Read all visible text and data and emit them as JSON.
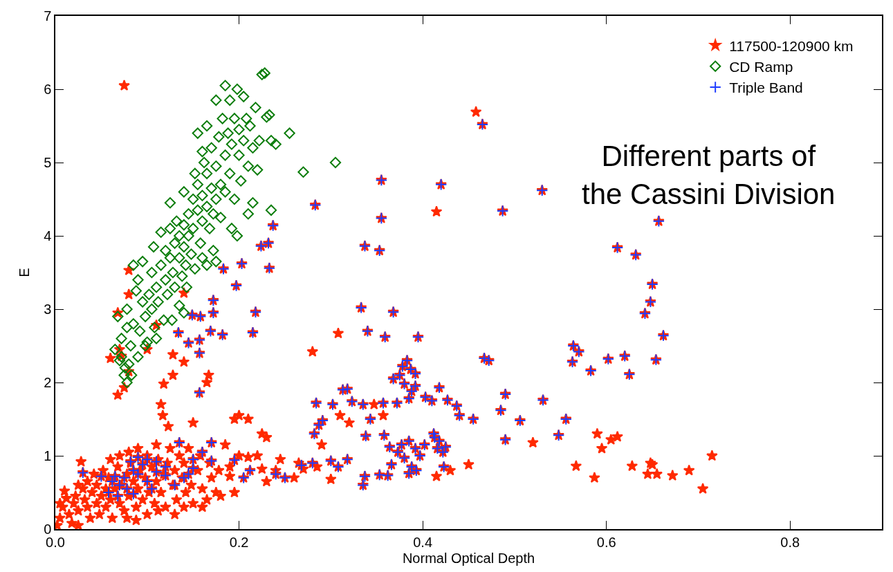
{
  "chart_data": {
    "type": "scatter",
    "xlabel": "Normal Optical Depth",
    "ylabel": "E",
    "xlim": [
      0,
      0.9
    ],
    "ylim": [
      0,
      7
    ],
    "xticks": [
      {
        "value": 0,
        "label": "0.0"
      },
      0.2,
      0.4,
      0.6,
      0.8
    ],
    "yticks": [
      0,
      1,
      2,
      3,
      4,
      5,
      6,
      7
    ],
    "legend": "top right",
    "annotations": [
      "Different parts of\nthe Cassini Division"
    ],
    "series": [
      {
        "name": "117500-120900 km",
        "color": "#ff2a00",
        "marker": "star",
        "x": [
          0.465,
          0.355,
          0.42,
          0.53,
          0.283,
          0.355,
          0.487,
          0.237,
          0.232,
          0.224,
          0.337,
          0.353,
          0.203,
          0.233,
          0.183,
          0.197,
          0.612,
          0.657,
          0.632,
          0.65,
          0.648,
          0.642,
          0.662,
          0.172,
          0.149,
          0.158,
          0.172,
          0.218,
          0.134,
          0.169,
          0.182,
          0.215,
          0.145,
          0.157,
          0.157,
          0.157,
          0.333,
          0.368,
          0.34,
          0.359,
          0.395,
          0.564,
          0.57,
          0.563,
          0.583,
          0.602,
          0.62,
          0.625,
          0.654,
          0.467,
          0.472,
          0.383,
          0.378,
          0.387,
          0.375,
          0.392,
          0.368,
          0.38,
          0.392,
          0.388,
          0.403,
          0.372,
          0.385,
          0.41,
          0.418,
          0.427,
          0.437,
          0.44,
          0.455,
          0.343,
          0.357,
          0.335,
          0.284,
          0.302,
          0.313,
          0.318,
          0.323,
          0.291,
          0.287,
          0.282,
          0.485,
          0.49,
          0.506,
          0.531,
          0.556,
          0.548,
          0.49,
          0.338,
          0.358,
          0.364,
          0.377,
          0.373,
          0.38,
          0.385,
          0.392,
          0.388,
          0.393,
          0.385,
          0.397,
          0.402,
          0.413,
          0.416,
          0.418,
          0.422,
          0.425,
          0.423,
          0.412,
          0.366,
          0.353,
          0.362,
          0.337,
          0.335,
          0.308,
          0.3,
          0.318,
          0.28,
          0.268,
          0.25,
          0.24,
          0.212,
          0.205,
          0.195,
          0.17,
          0.15,
          0.15,
          0.16,
          0.17,
          0.145,
          0.12,
          0.11,
          0.1,
          0.09,
          0.082,
          0.085,
          0.09,
          0.095,
          0.075,
          0.07,
          0.065,
          0.062,
          0.058,
          0.068,
          0.078,
          0.085,
          0.1,
          0.105,
          0.05,
          0.03,
          0.13,
          0.14,
          0.135,
          0.12,
          0.11,
          0.075,
          0.458,
          0.415,
          0.08,
          0.08,
          0.14,
          0.068,
          0.11,
          0.07,
          0.06,
          0.072,
          0.08,
          0.1,
          0.128,
          0.14,
          0.128,
          0.167,
          0.165,
          0.118,
          0.068,
          0.075,
          0.115,
          0.117,
          0.123,
          0.15,
          0.195,
          0.2,
          0.21,
          0.225,
          0.23,
          0.28,
          0.308,
          0.31,
          0.32,
          0.347,
          0.357,
          0.29,
          0.3,
          0.285,
          0.26,
          0.23,
          0.225,
          0.415,
          0.43,
          0.45,
          0.52,
          0.567,
          0.587,
          0.59,
          0.595,
          0.605,
          0.612,
          0.628,
          0.645,
          0.65,
          0.655,
          0.648,
          0.672,
          0.69,
          0.705,
          0.715,
          0.195,
          0.19,
          0.18,
          0.2,
          0.002,
          0.005,
          0.008,
          0.01,
          0.012,
          0.015,
          0.018,
          0.02,
          0.022,
          0.025,
          0.025,
          0.028,
          0.03,
          0.032,
          0.035,
          0.035,
          0.038,
          0.04,
          0.042,
          0.045,
          0.045,
          0.048,
          0.05,
          0.052,
          0.055,
          0.055,
          0.058,
          0.06,
          0.06,
          0.062,
          0.065,
          0.068,
          0.07,
          0.07,
          0.072,
          0.075,
          0.078,
          0.08,
          0.08,
          0.082,
          0.085,
          0.088,
          0.09,
          0.09,
          0.092,
          0.095,
          0.098,
          0.1,
          0.1,
          0.102,
          0.105,
          0.108,
          0.11,
          0.11,
          0.112,
          0.115,
          0.118,
          0.12,
          0.122,
          0.125,
          0.128,
          0.13,
          0.132,
          0.135,
          0.138,
          0.14,
          0.142,
          0.145,
          0.148,
          0.15,
          0.155,
          0.158,
          0.16,
          0.165,
          0.168,
          0.17,
          0.175,
          0.178,
          0.185,
          0.19,
          0.078,
          0.088,
          0.112,
          0.13,
          0.025,
          0.005,
          0.14,
          0.16,
          0.21,
          0.22,
          0.24,
          0.245,
          0.265,
          0.27
        ],
        "values": [
          5.52,
          4.76,
          4.7,
          4.62,
          4.42,
          4.24,
          4.34,
          4.14,
          3.9,
          3.86,
          3.86,
          3.8,
          3.62,
          3.56,
          3.55,
          3.32,
          3.84,
          4.2,
          3.74,
          3.34,
          3.1,
          2.94,
          2.64,
          3.12,
          2.92,
          2.9,
          2.95,
          2.96,
          2.68,
          2.7,
          2.65,
          2.68,
          2.54,
          2.58,
          2.4,
          1.86,
          3.02,
          2.96,
          2.7,
          2.62,
          2.62,
          2.5,
          2.42,
          2.28,
          2.16,
          2.32,
          2.36,
          2.11,
          2.31,
          2.33,
          2.3,
          2.3,
          2.22,
          2.18,
          2.1,
          2.12,
          2.05,
          1.98,
          1.95,
          1.88,
          1.8,
          1.72,
          1.78,
          1.75,
          1.93,
          1.76,
          1.68,
          1.55,
          1.5,
          1.5,
          1.72,
          1.7,
          1.72,
          1.7,
          1.9,
          1.91,
          1.74,
          1.48,
          1.42,
          1.3,
          1.62,
          1.84,
          1.48,
          1.76,
          1.5,
          1.28,
          1.22,
          1.27,
          1.28,
          1.12,
          1.15,
          1.05,
          0.97,
          1.2,
          1.1,
          0.85,
          0.8,
          0.76,
          1.0,
          1.15,
          1.25,
          1.1,
          1.2,
          1.05,
          1.12,
          0.85,
          1.3,
          0.88,
          0.74,
          0.73,
          0.72,
          0.6,
          0.85,
          0.93,
          0.95,
          0.9,
          0.87,
          0.7,
          0.75,
          0.8,
          0.7,
          0.94,
          0.93,
          0.95,
          0.83,
          1.05,
          1.18,
          0.75,
          0.85,
          0.92,
          0.95,
          0.98,
          0.92,
          0.8,
          0.75,
          0.88,
          0.7,
          0.6,
          0.72,
          0.65,
          0.5,
          0.45,
          0.55,
          0.48,
          0.65,
          0.55,
          0.72,
          0.77,
          0.6,
          0.7,
          1.18,
          0.73,
          0.78,
          6.05,
          5.69,
          4.33,
          3.53,
          3.2,
          3.22,
          2.95,
          2.78,
          2.45,
          2.33,
          2.36,
          2.15,
          2.45,
          2.38,
          2.28,
          2.1,
          2.1,
          2.0,
          1.98,
          1.83,
          1.93,
          1.7,
          1.55,
          1.4,
          1.45,
          1.5,
          1.55,
          1.5,
          1.3,
          1.25,
          2.42,
          2.67,
          1.55,
          1.45,
          1.7,
          1.55,
          1.15,
          0.68,
          0.85,
          0.7,
          0.65,
          0.82,
          0.72,
          0.8,
          0.88,
          1.18,
          0.86,
          0.7,
          1.3,
          1.1,
          1.22,
          1.26,
          0.86,
          0.75,
          0.88,
          0.75,
          0.9,
          0.73,
          0.8,
          0.55,
          1.0,
          0.5,
          0.72,
          0.45,
          1.0,
          0.05,
          0.15,
          0.3,
          0.52,
          0.42,
          0.2,
          0.08,
          0.35,
          0.45,
          0.6,
          0.25,
          0.92,
          0.55,
          0.4,
          0.3,
          0.65,
          0.15,
          0.5,
          0.75,
          0.35,
          0.6,
          0.2,
          0.45,
          0.8,
          0.55,
          0.3,
          0.7,
          0.4,
          0.95,
          0.15,
          0.55,
          0.85,
          0.35,
          1.0,
          0.6,
          0.25,
          0.75,
          0.45,
          1.05,
          0.9,
          0.65,
          0.3,
          0.55,
          1.1,
          0.8,
          0.4,
          0.7,
          1.0,
          0.2,
          0.5,
          0.85,
          0.35,
          0.65,
          1.15,
          0.95,
          0.5,
          0.75,
          0.3,
          0.9,
          1.1,
          0.6,
          0.8,
          0.4,
          1.0,
          0.7,
          0.9,
          0.5,
          1.1,
          0.6,
          0.35,
          0.8,
          1.0,
          0.55,
          0.4,
          0.9,
          0.7,
          0.5,
          0.8,
          1.15,
          0.85,
          0.15,
          0.12,
          0.25,
          0.2,
          0.05,
          0.35,
          0.3,
          0.3,
          0.98,
          1.0,
          0.8,
          0.95,
          0.9,
          0.82
        ]
      },
      {
        "name": "CD Ramp",
        "color": "#0a7d0a",
        "marker": "diamond",
        "x": [
          0.065,
          0.07,
          0.075,
          0.078,
          0.072,
          0.068,
          0.08,
          0.082,
          0.085,
          0.078,
          0.09,
          0.092,
          0.095,
          0.09,
          0.085,
          0.088,
          0.098,
          0.1,
          0.102,
          0.105,
          0.105,
          0.108,
          0.11,
          0.112,
          0.115,
          0.118,
          0.12,
          0.12,
          0.122,
          0.125,
          0.125,
          0.128,
          0.13,
          0.13,
          0.132,
          0.135,
          0.135,
          0.138,
          0.14,
          0.14,
          0.142,
          0.145,
          0.145,
          0.148,
          0.15,
          0.15,
          0.152,
          0.155,
          0.155,
          0.158,
          0.16,
          0.16,
          0.162,
          0.165,
          0.165,
          0.168,
          0.17,
          0.17,
          0.172,
          0.175,
          0.175,
          0.178,
          0.18,
          0.18,
          0.182,
          0.185,
          0.185,
          0.188,
          0.19,
          0.19,
          0.192,
          0.195,
          0.195,
          0.198,
          0.2,
          0.2,
          0.202,
          0.205,
          0.205,
          0.208,
          0.21,
          0.212,
          0.215,
          0.218,
          0.22,
          0.222,
          0.225,
          0.228,
          0.23,
          0.233,
          0.235,
          0.24,
          0.235,
          0.255,
          0.27,
          0.305,
          0.165,
          0.16,
          0.155,
          0.175,
          0.185,
          0.172,
          0.192,
          0.198,
          0.21,
          0.215,
          0.175,
          0.143,
          0.135,
          0.127,
          0.11,
          0.098,
          0.078,
          0.095,
          0.107,
          0.115,
          0.125,
          0.14,
          0.152,
          0.16,
          0.165,
          0.14,
          0.072,
          0.076,
          0.083
        ],
        "values": [
          2.45,
          2.3,
          2.1,
          2.0,
          2.6,
          2.9,
          2.25,
          2.5,
          2.8,
          3.0,
          2.35,
          2.7,
          3.1,
          3.4,
          3.6,
          3.25,
          2.9,
          2.55,
          3.2,
          3.0,
          3.5,
          2.75,
          3.3,
          3.1,
          3.6,
          2.85,
          3.4,
          3.8,
          3.2,
          3.7,
          4.1,
          3.5,
          3.9,
          3.3,
          4.2,
          3.7,
          4.0,
          3.45,
          4.15,
          3.85,
          3.6,
          4.3,
          4.0,
          3.75,
          4.5,
          4.1,
          3.55,
          4.35,
          4.7,
          3.9,
          4.55,
          4.2,
          5.0,
          4.4,
          4.85,
          4.1,
          4.65,
          5.2,
          3.8,
          4.5,
          4.95,
          5.35,
          4.7,
          4.25,
          5.6,
          5.1,
          4.6,
          5.4,
          4.85,
          5.85,
          5.25,
          4.5,
          5.6,
          6.0,
          5.1,
          5.45,
          4.75,
          5.9,
          5.3,
          5.6,
          4.95,
          5.5,
          5.2,
          5.75,
          4.9,
          5.3,
          6.2,
          6.22,
          5.62,
          5.65,
          5.3,
          5.25,
          4.35,
          5.4,
          4.87,
          5.0,
          5.5,
          5.15,
          5.4,
          5.85,
          6.05,
          4.3,
          4.1,
          4.0,
          4.3,
          4.45,
          3.65,
          3.3,
          3.05,
          2.85,
          2.6,
          2.5,
          2.75,
          3.65,
          3.85,
          4.05,
          4.45,
          4.6,
          4.85,
          3.7,
          3.6,
          2.95,
          2.35,
          2.2,
          2.1
        ]
      },
      {
        "name": "Triple Band",
        "color": "#1e3cff",
        "marker": "cross",
        "x": [
          0.465,
          0.355,
          0.42,
          0.53,
          0.283,
          0.355,
          0.487,
          0.237,
          0.232,
          0.224,
          0.337,
          0.353,
          0.203,
          0.233,
          0.183,
          0.197,
          0.612,
          0.657,
          0.632,
          0.65,
          0.648,
          0.642,
          0.662,
          0.172,
          0.149,
          0.158,
          0.172,
          0.218,
          0.134,
          0.169,
          0.182,
          0.215,
          0.145,
          0.157,
          0.157,
          0.157,
          0.333,
          0.368,
          0.34,
          0.359,
          0.395,
          0.564,
          0.57,
          0.563,
          0.583,
          0.602,
          0.62,
          0.625,
          0.654,
          0.467,
          0.472,
          0.383,
          0.378,
          0.387,
          0.375,
          0.392,
          0.368,
          0.38,
          0.392,
          0.388,
          0.403,
          0.372,
          0.385,
          0.41,
          0.418,
          0.427,
          0.437,
          0.44,
          0.455,
          0.343,
          0.357,
          0.335,
          0.284,
          0.302,
          0.313,
          0.318,
          0.323,
          0.291,
          0.287,
          0.282,
          0.485,
          0.49,
          0.506,
          0.531,
          0.556,
          0.548,
          0.49,
          0.338,
          0.358,
          0.364,
          0.377,
          0.373,
          0.38,
          0.385,
          0.392,
          0.388,
          0.393,
          0.385,
          0.397,
          0.402,
          0.413,
          0.416,
          0.418,
          0.422,
          0.425,
          0.423,
          0.412,
          0.366,
          0.353,
          0.362,
          0.337,
          0.335,
          0.308,
          0.3,
          0.318,
          0.28,
          0.268,
          0.25,
          0.24,
          0.212,
          0.205,
          0.195,
          0.17,
          0.15,
          0.15,
          0.16,
          0.17,
          0.145,
          0.12,
          0.11,
          0.1,
          0.09,
          0.082,
          0.085,
          0.09,
          0.095,
          0.075,
          0.07,
          0.065,
          0.062,
          0.058,
          0.068,
          0.078,
          0.085,
          0.1,
          0.105,
          0.05,
          0.03,
          0.13,
          0.14,
          0.135,
          0.12,
          0.11
        ],
        "values": [
          5.52,
          4.76,
          4.7,
          4.62,
          4.42,
          4.24,
          4.34,
          4.14,
          3.9,
          3.86,
          3.86,
          3.8,
          3.62,
          3.56,
          3.55,
          3.32,
          3.84,
          4.2,
          3.74,
          3.34,
          3.1,
          2.94,
          2.64,
          3.12,
          2.92,
          2.9,
          2.95,
          2.96,
          2.68,
          2.7,
          2.65,
          2.68,
          2.54,
          2.58,
          2.4,
          1.86,
          3.02,
          2.96,
          2.7,
          2.62,
          2.62,
          2.5,
          2.42,
          2.28,
          2.16,
          2.32,
          2.36,
          2.11,
          2.31,
          2.33,
          2.3,
          2.3,
          2.22,
          2.18,
          2.1,
          2.12,
          2.05,
          1.98,
          1.95,
          1.88,
          1.8,
          1.72,
          1.78,
          1.75,
          1.93,
          1.76,
          1.68,
          1.55,
          1.5,
          1.5,
          1.72,
          1.7,
          1.72,
          1.7,
          1.9,
          1.91,
          1.74,
          1.48,
          1.42,
          1.3,
          1.62,
          1.84,
          1.48,
          1.76,
          1.5,
          1.28,
          1.22,
          1.27,
          1.28,
          1.12,
          1.15,
          1.05,
          0.97,
          1.2,
          1.1,
          0.85,
          0.8,
          0.76,
          1.0,
          1.15,
          1.25,
          1.1,
          1.2,
          1.05,
          1.12,
          0.85,
          1.3,
          0.88,
          0.74,
          0.73,
          0.72,
          0.6,
          0.85,
          0.93,
          0.95,
          0.9,
          0.87,
          0.7,
          0.75,
          0.8,
          0.7,
          0.94,
          0.93,
          0.95,
          0.83,
          1.05,
          1.18,
          0.75,
          0.85,
          0.92,
          0.95,
          0.98,
          0.92,
          0.8,
          0.75,
          0.88,
          0.7,
          0.6,
          0.72,
          0.65,
          0.5,
          0.45,
          0.55,
          0.48,
          0.65,
          0.55,
          0.72,
          0.77,
          0.6,
          0.7,
          1.18,
          0.73,
          0.78
        ]
      }
    ]
  }
}
